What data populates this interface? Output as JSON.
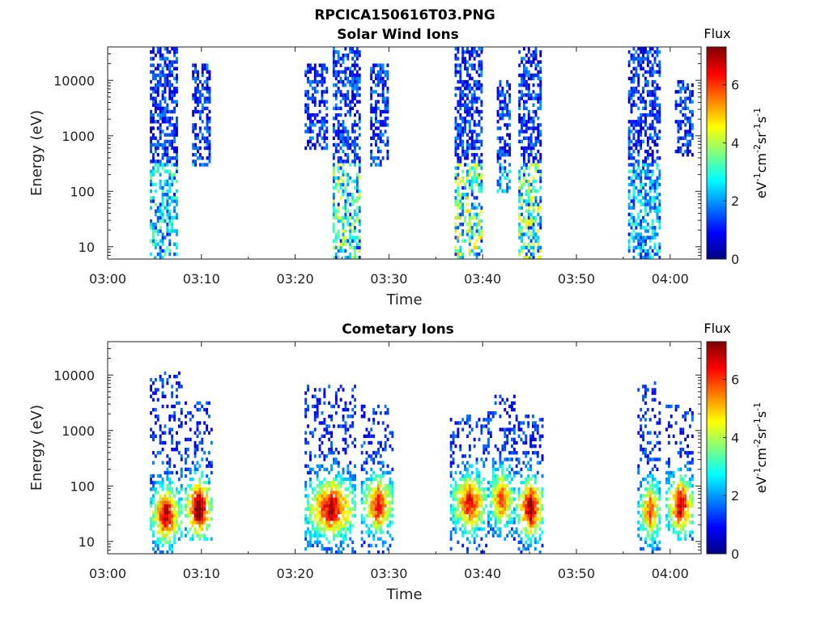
{
  "figure_title": "RPCICA150616T03.PNG",
  "colorbar": {
    "title": "Flux",
    "label_parts": [
      "eV",
      "-1",
      "cm",
      "-2",
      "sr",
      "-1",
      "s",
      "-1"
    ],
    "ticks": [
      "0",
      "2",
      "4",
      "6"
    ],
    "range": [
      0,
      7.3
    ],
    "colormap": "jet"
  },
  "chart_data": [
    {
      "type": "heatmap",
      "title": "Solar Wind Ions",
      "xlabel": "Time",
      "ylabel": "Energy (eV)",
      "x_ticks": [
        "03:00",
        "03:10",
        "03:20",
        "03:30",
        "03:40",
        "03:50",
        "04:00"
      ],
      "y_ticks": [
        "10",
        "100",
        "1000",
        "10000"
      ],
      "y_scale": "log",
      "ylim": [
        6,
        40000
      ],
      "xlim_minutes": [
        0,
        63.3
      ],
      "color_range": [
        0,
        7.3
      ],
      "bursts": [
        {
          "x_start": 4.5,
          "x_end": 7.5,
          "e_low": 6,
          "e_high": 40000,
          "peak_flux": 3.3
        },
        {
          "x_start": 9.0,
          "x_end": 11.0,
          "e_low": 300,
          "e_high": 20000,
          "peak_flux": 2.8
        },
        {
          "x_start": 21.0,
          "x_end": 23.5,
          "e_low": 600,
          "e_high": 20000,
          "peak_flux": 2.5
        },
        {
          "x_start": 24.0,
          "x_end": 27.0,
          "e_low": 6,
          "e_high": 40000,
          "peak_flux": 4.2
        },
        {
          "x_start": 28.0,
          "x_end": 30.0,
          "e_low": 300,
          "e_high": 20000,
          "peak_flux": 2.5
        },
        {
          "x_start": 37.0,
          "x_end": 39.8,
          "e_low": 6,
          "e_high": 40000,
          "peak_flux": 4.8
        },
        {
          "x_start": 41.5,
          "x_end": 43.0,
          "e_low": 100,
          "e_high": 10000,
          "peak_flux": 2.8
        },
        {
          "x_start": 43.8,
          "x_end": 46.2,
          "e_low": 6,
          "e_high": 40000,
          "peak_flux": 4.5
        },
        {
          "x_start": 55.5,
          "x_end": 59.0,
          "e_low": 6,
          "e_high": 40000,
          "peak_flux": 3.0
        },
        {
          "x_start": 60.5,
          "x_end": 62.5,
          "e_low": 400,
          "e_high": 10000,
          "peak_flux": 2.8
        }
      ]
    },
    {
      "type": "heatmap",
      "title": "Cometary Ions",
      "xlabel": "Time",
      "ylabel": "Energy (eV)",
      "x_ticks": [
        "03:00",
        "03:10",
        "03:20",
        "03:30",
        "03:40",
        "03:50",
        "04:00"
      ],
      "y_ticks": [
        "10",
        "100",
        "1000",
        "10000"
      ],
      "y_scale": "log",
      "ylim": [
        6,
        40000
      ],
      "xlim_minutes": [
        0,
        63.3
      ],
      "color_range": [
        0,
        7.3
      ],
      "bursts": [
        {
          "x_start": 4.5,
          "x_end": 7.8,
          "e_low": 6,
          "e_high": 12000,
          "e_peak": 30,
          "peak_flux": 6.0
        },
        {
          "x_start": 8.2,
          "x_end": 11.0,
          "e_low": 10,
          "e_high": 3500,
          "e_peak": 40,
          "peak_flux": 7.0
        },
        {
          "x_start": 21.0,
          "x_end": 26.5,
          "e_low": 6,
          "e_high": 7000,
          "e_peak": 40,
          "peak_flux": 6.0
        },
        {
          "x_start": 27.0,
          "x_end": 30.5,
          "e_low": 6,
          "e_high": 3000,
          "e_peak": 45,
          "peak_flux": 5.5
        },
        {
          "x_start": 36.5,
          "x_end": 40.5,
          "e_low": 6,
          "e_high": 2000,
          "e_peak": 50,
          "peak_flux": 5.5
        },
        {
          "x_start": 40.5,
          "x_end": 43.3,
          "e_low": 10,
          "e_high": 4500,
          "e_peak": 60,
          "peak_flux": 5.0
        },
        {
          "x_start": 43.5,
          "x_end": 46.5,
          "e_low": 6,
          "e_high": 2000,
          "e_peak": 40,
          "peak_flux": 6.3
        },
        {
          "x_start": 56.5,
          "x_end": 59.0,
          "e_low": 6,
          "e_high": 8000,
          "e_peak": 35,
          "peak_flux": 5.0
        },
        {
          "x_start": 59.5,
          "x_end": 62.5,
          "e_low": 10,
          "e_high": 3000,
          "e_peak": 45,
          "peak_flux": 6.0
        }
      ]
    }
  ]
}
